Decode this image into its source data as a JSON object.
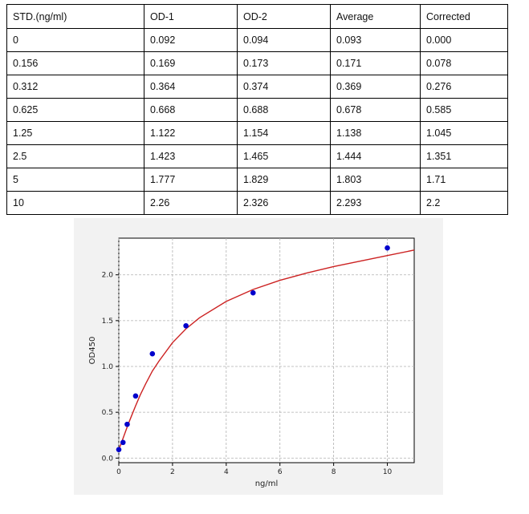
{
  "table": {
    "headers": [
      "STD.(ng/ml)",
      "OD-1",
      "OD-2",
      "Average",
      "Corrected"
    ],
    "rows": [
      [
        "0",
        "0.092",
        "0.094",
        "0.093",
        "0.000"
      ],
      [
        "0.156",
        "0.169",
        "0.173",
        "0.171",
        "0.078"
      ],
      [
        "0.312",
        "0.364",
        "0.374",
        "0.369",
        "0.276"
      ],
      [
        "0.625",
        "0.668",
        "0.688",
        "0.678",
        "0.585"
      ],
      [
        "1.25",
        "1.122",
        "1.154",
        "1.138",
        "1.045"
      ],
      [
        "2.5",
        "1.423",
        "1.465",
        "1.444",
        "1.351"
      ],
      [
        "5",
        "1.777",
        "1.829",
        "1.803",
        "1.71"
      ],
      [
        "10",
        "2.26",
        "2.326",
        "2.293",
        "2.2"
      ]
    ]
  },
  "chart_data": {
    "type": "scatter",
    "xlabel": "ng/ml",
    "ylabel": "OD450",
    "xlim": [
      0,
      11
    ],
    "ylim": [
      -0.05,
      2.4
    ],
    "xticks": [
      0,
      2,
      4,
      6,
      8,
      10
    ],
    "yticks": [
      0.0,
      0.5,
      1.0,
      1.5,
      2.0
    ],
    "grid": true,
    "series": [
      {
        "kind": "points",
        "color": "#0000cc",
        "x": [
          0,
          0.156,
          0.312,
          0.625,
          1.25,
          2.5,
          5,
          10
        ],
        "y": [
          0.093,
          0.171,
          0.369,
          0.678,
          1.138,
          1.444,
          1.803,
          2.293
        ]
      },
      {
        "kind": "curve",
        "color": "#cc2222",
        "x": [
          0,
          0.1,
          0.2,
          0.35,
          0.5,
          0.625,
          0.8,
          1.0,
          1.25,
          1.5,
          2.0,
          2.5,
          3.0,
          4.0,
          5.0,
          6.0,
          7.0,
          8.0,
          9.0,
          10.0,
          11.0
        ],
        "y": [
          0.09,
          0.17,
          0.25,
          0.37,
          0.48,
          0.57,
          0.69,
          0.81,
          0.95,
          1.06,
          1.26,
          1.41,
          1.53,
          1.71,
          1.84,
          1.94,
          2.02,
          2.09,
          2.15,
          2.21,
          2.27
        ]
      }
    ]
  }
}
